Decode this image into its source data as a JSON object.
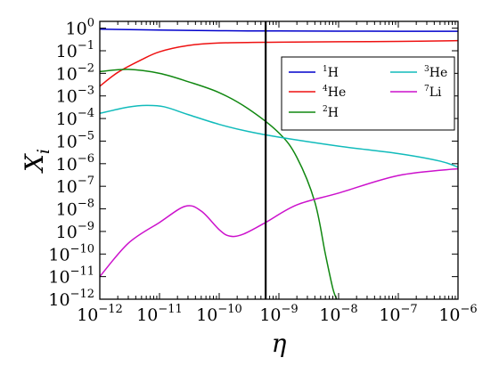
{
  "chart_data": {
    "type": "line",
    "title": "",
    "xlabel": "η",
    "ylabel": "X",
    "ylabel_subscript": "i",
    "xscale": "log",
    "yscale": "log",
    "xlim": [
      1e-12,
      1e-06
    ],
    "ylim": [
      1e-12,
      2.0
    ],
    "grid": false,
    "legend_position": "upper-right",
    "x_ticks": [
      {
        "base": "10",
        "exp": "−12",
        "value": 1e-12
      },
      {
        "base": "10",
        "exp": "−11",
        "value": 1e-11
      },
      {
        "base": "10",
        "exp": "−10",
        "value": 1e-10
      },
      {
        "base": "10",
        "exp": "−9",
        "value": 1e-09
      },
      {
        "base": "10",
        "exp": "−8",
        "value": 1e-08
      },
      {
        "base": "10",
        "exp": "−7",
        "value": 1e-07
      },
      {
        "base": "10",
        "exp": "−6",
        "value": 1e-06
      }
    ],
    "y_ticks": [
      {
        "base": "10",
        "exp": "0",
        "value": 1
      },
      {
        "base": "10",
        "exp": "−1",
        "value": 0.1
      },
      {
        "base": "10",
        "exp": "−2",
        "value": 0.01
      },
      {
        "base": "10",
        "exp": "−3",
        "value": 0.001
      },
      {
        "base": "10",
        "exp": "−4",
        "value": 0.0001
      },
      {
        "base": "10",
        "exp": "−5",
        "value": 1e-05
      },
      {
        "base": "10",
        "exp": "−6",
        "value": 1e-06
      },
      {
        "base": "10",
        "exp": "−7",
        "value": 1e-07
      },
      {
        "base": "10",
        "exp": "−8",
        "value": 1e-08
      },
      {
        "base": "10",
        "exp": "−9",
        "value": 1e-09
      },
      {
        "base": "10",
        "exp": "−10",
        "value": 1e-10
      },
      {
        "base": "10",
        "exp": "−11",
        "value": 1e-11
      },
      {
        "base": "10",
        "exp": "−12",
        "value": 1e-12
      }
    ],
    "vline": {
      "x": 6e-10,
      "color": "#000000"
    },
    "series": [
      {
        "name_sup": "1",
        "name": "H",
        "color": "#0000cc",
        "points": [
          [
            1e-12,
            0.9
          ],
          [
            1e-11,
            0.83
          ],
          [
            1e-10,
            0.77
          ],
          [
            1e-09,
            0.75
          ],
          [
            1e-08,
            0.74
          ],
          [
            1e-07,
            0.73
          ],
          [
            1e-06,
            0.73
          ]
        ]
      },
      {
        "name_sup": "4",
        "name": "He",
        "color": "#ee1111",
        "points": [
          [
            1e-12,
            0.0027
          ],
          [
            2e-12,
            0.011
          ],
          [
            5e-12,
            0.04
          ],
          [
            1e-11,
            0.09
          ],
          [
            3e-11,
            0.17
          ],
          [
            1e-10,
            0.22
          ],
          [
            1e-09,
            0.24
          ],
          [
            1e-08,
            0.25
          ],
          [
            1e-07,
            0.26
          ],
          [
            1e-06,
            0.28
          ]
        ]
      },
      {
        "name_sup": "2",
        "name": "H",
        "color": "#118811",
        "points": [
          [
            1e-12,
            0.012
          ],
          [
            3e-12,
            0.015
          ],
          [
            1e-11,
            0.01
          ],
          [
            3e-11,
            0.0043
          ],
          [
            1e-10,
            0.0014
          ],
          [
            3e-10,
            0.00028
          ],
          [
            1e-09,
            2.3e-05
          ],
          [
            2e-09,
            1.9e-06
          ],
          [
            4e-09,
            2e-08
          ],
          [
            6e-09,
            1e-10
          ],
          [
            8e-09,
            3e-12
          ],
          [
            9.3e-09,
            1e-12
          ]
        ]
      },
      {
        "name_sup": "3",
        "name": "He",
        "color": "#11bbbb",
        "points": [
          [
            1e-12,
            0.00017
          ],
          [
            3e-12,
            0.00032
          ],
          [
            6e-12,
            0.00038
          ],
          [
            1.2e-11,
            0.00033
          ],
          [
            3e-11,
            0.00015
          ],
          [
            1e-10,
            5.5e-05
          ],
          [
            3e-10,
            2.7e-05
          ],
          [
            1e-09,
            1.5e-05
          ],
          [
            1e-08,
            6e-06
          ],
          [
            1e-07,
            2.8e-06
          ],
          [
            5e-07,
            1.3e-06
          ],
          [
            1e-06,
            7e-07
          ]
        ]
      },
      {
        "name_sup": "7",
        "name": "Li",
        "color": "#cc11cc",
        "points": [
          [
            1e-12,
            1e-11
          ],
          [
            3e-12,
            3e-10
          ],
          [
            1e-11,
            2.5e-09
          ],
          [
            2.7e-11,
            1.3e-08
          ],
          [
            5e-11,
            8e-09
          ],
          [
            1e-10,
            1.2e-09
          ],
          [
            1.5e-10,
            6.2e-10
          ],
          [
            2.5e-10,
            7.5e-10
          ],
          [
            6e-10,
            2.5e-09
          ],
          [
            2e-09,
            1.5e-08
          ],
          [
            1e-08,
            5e-08
          ],
          [
            1e-07,
            3e-07
          ],
          [
            1e-06,
            6e-07
          ]
        ]
      }
    ]
  }
}
